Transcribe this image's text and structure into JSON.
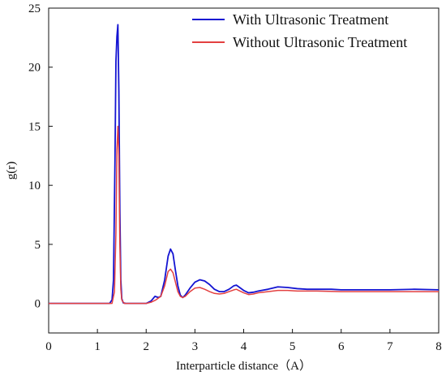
{
  "chart_data": {
    "type": "line",
    "title": "",
    "xlabel": "Interparticle distance（A）",
    "ylabel": "g(r)",
    "xlim": [
      0,
      8
    ],
    "ylim": [
      -2.5,
      25
    ],
    "xticks": [
      0,
      1,
      2,
      3,
      4,
      5,
      6,
      7,
      8
    ],
    "yticks": [
      0,
      5,
      10,
      15,
      20,
      25
    ],
    "grid": false,
    "legend": "top-right",
    "series": [
      {
        "name": "With Ultrasonic Treatment",
        "color": "#1414d2",
        "x": [
          0,
          1.25,
          1.3,
          1.33,
          1.36,
          1.38,
          1.4,
          1.42,
          1.44,
          1.46,
          1.48,
          1.5,
          1.53,
          1.58,
          2.0,
          2.1,
          2.18,
          2.25,
          2.3,
          2.38,
          2.45,
          2.5,
          2.55,
          2.6,
          2.65,
          2.7,
          2.75,
          2.8,
          2.9,
          3.0,
          3.1,
          3.2,
          3.3,
          3.4,
          3.5,
          3.6,
          3.7,
          3.8,
          3.85,
          3.9,
          4.0,
          4.1,
          4.2,
          4.3,
          4.5,
          4.7,
          4.9,
          5.1,
          5.3,
          5.5,
          5.8,
          6.0,
          6.5,
          7.0,
          7.5,
          8.0
        ],
        "y": [
          0,
          0,
          0.3,
          2.0,
          12.0,
          20.5,
          22.6,
          23.6,
          18.0,
          8.0,
          2.0,
          0.4,
          0.05,
          0,
          0,
          0.2,
          0.6,
          0.5,
          0.6,
          2.0,
          4.0,
          4.6,
          4.2,
          2.8,
          1.5,
          0.7,
          0.5,
          0.7,
          1.3,
          1.8,
          2.0,
          1.9,
          1.6,
          1.2,
          1.0,
          1.0,
          1.2,
          1.5,
          1.55,
          1.4,
          1.1,
          0.9,
          0.95,
          1.05,
          1.2,
          1.4,
          1.35,
          1.25,
          1.2,
          1.2,
          1.2,
          1.15,
          1.15,
          1.15,
          1.2,
          1.15
        ]
      },
      {
        "name": "Without Ultrasonic Treatment",
        "color": "#e34040",
        "x": [
          0,
          1.3,
          1.35,
          1.38,
          1.4,
          1.42,
          1.44,
          1.46,
          1.48,
          1.5,
          1.55,
          2.0,
          2.1,
          2.2,
          2.3,
          2.38,
          2.45,
          2.5,
          2.55,
          2.6,
          2.65,
          2.7,
          2.75,
          2.8,
          2.9,
          3.0,
          3.1,
          3.2,
          3.3,
          3.4,
          3.5,
          3.6,
          3.7,
          3.8,
          3.85,
          3.9,
          4.0,
          4.1,
          4.2,
          4.3,
          4.5,
          4.7,
          4.9,
          5.1,
          5.5,
          6.0,
          6.5,
          7.0,
          7.5,
          8.0
        ],
        "y": [
          0,
          0,
          1.0,
          6.0,
          13.0,
          15.0,
          12.5,
          5.0,
          1.2,
          0.3,
          0,
          0,
          0.1,
          0.3,
          0.6,
          1.5,
          2.7,
          2.9,
          2.6,
          1.8,
          1.0,
          0.6,
          0.5,
          0.6,
          1.0,
          1.3,
          1.35,
          1.2,
          1.0,
          0.85,
          0.8,
          0.85,
          1.0,
          1.15,
          1.2,
          1.1,
          0.9,
          0.75,
          0.8,
          0.9,
          1.0,
          1.1,
          1.1,
          1.05,
          1.05,
          1.0,
          1.0,
          1.0,
          1.0,
          1.0
        ]
      }
    ]
  }
}
